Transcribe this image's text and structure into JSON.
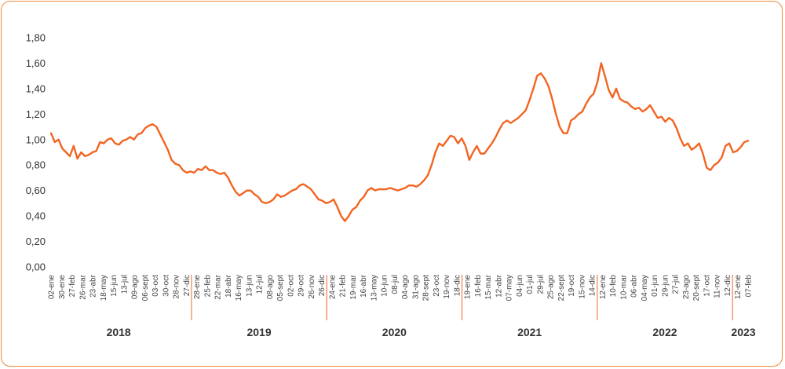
{
  "chart_data": {
    "type": "line",
    "title": "",
    "xlabel": "",
    "ylabel": "",
    "ylim": [
      0,
      1.8
    ],
    "yticks": [
      "0,00",
      "0,20",
      "0,40",
      "0,60",
      "0,80",
      "1,00",
      "1,20",
      "1,40",
      "1,60",
      "1,80"
    ],
    "grid": false,
    "legend": "none",
    "line_color": "#f26522",
    "divider_color": "#f26522",
    "year_groups": [
      {
        "year": "2018",
        "ticks": [
          "02-ene",
          "30-ene",
          "27-feb",
          "26-mar",
          "23-abr",
          "18-may",
          "15-jun",
          "13-jul",
          "09-ago",
          "06-sept",
          "03-oct",
          "30-oct",
          "28-nov",
          "27-dic"
        ]
      },
      {
        "year": "2019",
        "ticks": [
          "28-ene",
          "25-feb",
          "22-mar",
          "18-abr",
          "16-may",
          "13-jun",
          "12-jul",
          "08-ago",
          "05-sept",
          "02-oct",
          "29-oct",
          "26-nov",
          "26-dic"
        ]
      },
      {
        "year": "2020",
        "ticks": [
          "24-ene",
          "21-feb",
          "19-mar",
          "16-abr",
          "13-may",
          "10-jun",
          "08-jul",
          "04-ago",
          "31-ago",
          "28-sept",
          "23-oct",
          "19-nov",
          "18-dic"
        ]
      },
      {
        "year": "2021",
        "ticks": [
          "19-ene",
          "16-feb",
          "15-mar",
          "12-abr",
          "07-may",
          "04-jun",
          "01-jul",
          "29-jul",
          "25-ago",
          "22-sept",
          "19-oct",
          "15-nov",
          "14-dic"
        ]
      },
      {
        "year": "2022",
        "ticks": [
          "12-ene",
          "10-feb",
          "10-mar",
          "06-abr",
          "04-may",
          "01-jun",
          "29-jun",
          "27-jul",
          "23-ago",
          "20-sept",
          "17-oct",
          "11-nov",
          "12-dic"
        ]
      },
      {
        "year": "2023",
        "ticks": [
          "12-ene",
          "07-feb"
        ]
      }
    ],
    "series": [
      {
        "values": [
          1.05,
          0.98,
          1.0,
          0.93,
          0.9,
          0.87,
          0.95,
          0.85,
          0.9,
          0.87,
          0.88,
          0.9,
          0.91,
          0.98,
          0.97,
          1.0,
          1.01,
          0.97,
          0.96,
          0.99,
          1.0,
          1.02,
          1.0,
          1.04,
          1.05,
          1.09,
          1.11,
          1.12,
          1.1,
          1.04,
          0.98,
          0.92,
          0.84,
          0.81,
          0.8,
          0.76,
          0.74,
          0.75,
          0.74,
          0.77,
          0.76,
          0.79,
          0.76,
          0.76,
          0.74,
          0.73,
          0.74,
          0.7,
          0.64,
          0.59,
          0.56,
          0.58,
          0.6,
          0.6,
          0.57,
          0.55,
          0.51,
          0.5,
          0.51,
          0.53,
          0.57,
          0.55,
          0.56,
          0.58,
          0.6,
          0.61,
          0.64,
          0.65,
          0.63,
          0.61,
          0.57,
          0.53,
          0.52,
          0.5,
          0.51,
          0.53,
          0.47,
          0.4,
          0.36,
          0.4,
          0.45,
          0.47,
          0.52,
          0.55,
          0.6,
          0.62,
          0.6,
          0.61,
          0.61,
          0.61,
          0.62,
          0.61,
          0.6,
          0.61,
          0.62,
          0.64,
          0.64,
          0.63,
          0.65,
          0.68,
          0.72,
          0.8,
          0.9,
          0.97,
          0.95,
          0.99,
          1.03,
          1.02,
          0.97,
          1.01,
          0.95,
          0.84,
          0.9,
          0.95,
          0.89,
          0.89,
          0.93,
          0.97,
          1.02,
          1.08,
          1.13,
          1.15,
          1.13,
          1.15,
          1.17,
          1.2,
          1.23,
          1.31,
          1.4,
          1.5,
          1.52,
          1.48,
          1.42,
          1.32,
          1.2,
          1.1,
          1.05,
          1.05,
          1.15,
          1.17,
          1.2,
          1.22,
          1.28,
          1.33,
          1.36,
          1.45,
          1.6,
          1.5,
          1.39,
          1.33,
          1.4,
          1.32,
          1.3,
          1.29,
          1.26,
          1.24,
          1.25,
          1.22,
          1.24,
          1.27,
          1.22,
          1.17,
          1.18,
          1.14,
          1.17,
          1.15,
          1.09,
          1.01,
          0.95,
          0.97,
          0.92,
          0.94,
          0.97,
          0.89,
          0.78,
          0.76,
          0.8,
          0.82,
          0.86,
          0.95,
          0.97,
          0.9,
          0.91,
          0.94,
          0.98,
          0.99
        ]
      }
    ]
  }
}
